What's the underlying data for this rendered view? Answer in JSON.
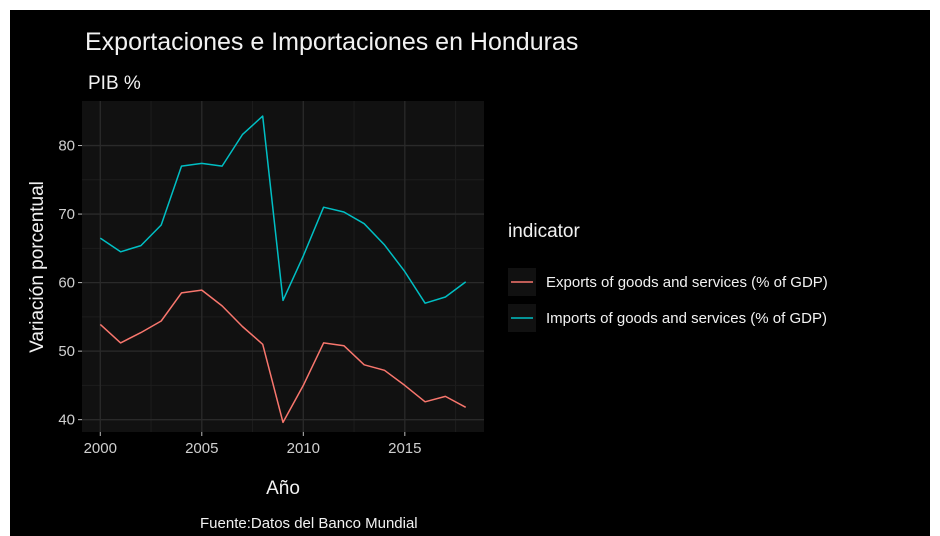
{
  "chart_data": {
    "type": "line",
    "title": "Exportaciones e Importaciones en Honduras",
    "subtitle": "PIB %",
    "xlabel": "Año",
    "ylabel": "Variación porcentual",
    "caption": "Fuente:Datos del Banco Mundial",
    "legend_title": "indicator",
    "legend_position": "right",
    "grid": true,
    "xlim": [
      1999.1,
      2018.9
    ],
    "ylim": [
      38.2,
      86.5
    ],
    "x_ticks": [
      2000,
      2005,
      2010,
      2015
    ],
    "y_ticks": [
      40,
      50,
      60,
      70,
      80
    ],
    "x": [
      2000,
      2001,
      2002,
      2003,
      2004,
      2005,
      2006,
      2007,
      2008,
      2009,
      2010,
      2011,
      2012,
      2013,
      2014,
      2015,
      2016,
      2017,
      2018
    ],
    "series": [
      {
        "name": "Exports of goods and services (% of GDP)",
        "color": "#f8766d",
        "values": [
          53.9,
          51.2,
          52.7,
          54.4,
          58.5,
          58.9,
          56.6,
          53.6,
          51.0,
          39.6,
          45.0,
          51.2,
          50.8,
          48.0,
          47.2,
          45.0,
          42.6,
          43.4,
          41.8
        ]
      },
      {
        "name": "Imports of goods and services (% of GDP)",
        "color": "#00bfc4",
        "values": [
          66.5,
          64.5,
          65.4,
          68.4,
          77.0,
          77.4,
          77.0,
          81.6,
          84.3,
          57.4,
          63.9,
          71.0,
          70.3,
          68.6,
          65.5,
          61.6,
          57.0,
          57.9,
          60.1
        ]
      }
    ]
  }
}
